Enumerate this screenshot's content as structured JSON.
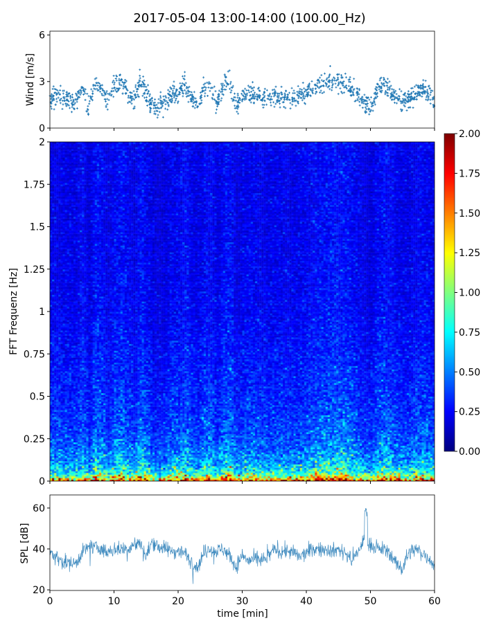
{
  "title": "2017-05-04 13:00-14:00 (100.00_Hz)",
  "chart_data": [
    {
      "type": "scatter",
      "ylabel": "Wind [m/s]",
      "xlim": [
        0,
        60
      ],
      "ylim": [
        0,
        6.25
      ],
      "yticks": [
        "0",
        "3",
        "6"
      ],
      "marker": "+",
      "color": "#1f77b4",
      "x": [
        0,
        1,
        2,
        3,
        4,
        5,
        6,
        7,
        8,
        9,
        10,
        11,
        12,
        13,
        14,
        15,
        16,
        17,
        18,
        19,
        20,
        21,
        22,
        23,
        24,
        25,
        26,
        27,
        28,
        29,
        30,
        31,
        32,
        33,
        34,
        35,
        36,
        37,
        38,
        39,
        40,
        41,
        42,
        43,
        44,
        45,
        46,
        47,
        48,
        49,
        50,
        51,
        52,
        53,
        54,
        55,
        56,
        57,
        58,
        59,
        60
      ],
      "y": [
        1.9,
        2.0,
        1.9,
        1.8,
        1.7,
        2.6,
        1.3,
        3.0,
        2.5,
        1.6,
        2.6,
        3.0,
        2.3,
        1.6,
        3.0,
        2.3,
        1.5,
        1.3,
        1.6,
        2.3,
        2.2,
        2.8,
        2.0,
        1.6,
        2.5,
        2.6,
        1.5,
        2.7,
        3.0,
        1.5,
        2.0,
        2.3,
        2.1,
        2.0,
        1.9,
        2.0,
        2.0,
        2.0,
        1.9,
        2.1,
        2.2,
        2.6,
        2.8,
        2.9,
        3.2,
        3.0,
        3.0,
        2.6,
        2.2,
        1.6,
        1.4,
        2.5,
        2.9,
        2.5,
        2.0,
        1.8,
        1.8,
        2.3,
        2.5,
        2.2,
        1.7
      ]
    },
    {
      "type": "heatmap",
      "ylabel": "FFT Frequenz [Hz]",
      "xlim": [
        0,
        60
      ],
      "ylim": [
        0,
        2
      ],
      "yticks": [
        "0",
        "0.25",
        "0.5",
        "0.75",
        "1",
        "1.25",
        "1.5",
        "1.75",
        "2"
      ],
      "colormap": "jet",
      "frequency_hz": [
        0,
        0.02,
        0.05,
        0.1,
        0.2,
        0.3,
        0.5,
        0.75,
        1.0,
        1.5,
        2.0
      ],
      "mean_level": [
        1.7,
        1.2,
        0.8,
        0.6,
        0.45,
        0.38,
        0.32,
        0.28,
        0.24,
        0.22,
        0.22
      ],
      "colorbar": {
        "range": [
          0,
          2
        ],
        "ticks": [
          "0.00",
          "0.25",
          "0.50",
          "0.75",
          "1.00",
          "1.25",
          "1.50",
          "1.75",
          "2.00"
        ]
      }
    },
    {
      "type": "line",
      "ylabel": "SPL [dB]",
      "xlabel": "time [min]",
      "xlim": [
        0,
        60
      ],
      "ylim": [
        19.7,
        66.4
      ],
      "yticks": [
        "20",
        "40",
        "60"
      ],
      "xticks": [
        "0",
        "10",
        "20",
        "30",
        "40",
        "50",
        "60"
      ],
      "color": "#1f77b4",
      "x": [
        0,
        1,
        2,
        3,
        4,
        5,
        6,
        7,
        8,
        9,
        10,
        11,
        12,
        13,
        14,
        15,
        16,
        17,
        18,
        19,
        20,
        21,
        22,
        23,
        24,
        25,
        26,
        27,
        28,
        29,
        30,
        31,
        32,
        33,
        34,
        35,
        36,
        37,
        38,
        39,
        40,
        41,
        42,
        43,
        44,
        45,
        46,
        47,
        48,
        49,
        50,
        51,
        52,
        53,
        54,
        55,
        56,
        57,
        58,
        59,
        60
      ],
      "y": [
        39,
        36,
        34,
        33,
        33,
        38,
        41,
        41,
        40,
        38,
        40,
        40,
        40,
        42,
        43,
        36,
        44,
        41,
        40,
        39,
        39,
        38,
        34,
        31,
        38,
        40,
        39,
        40,
        37,
        31,
        37,
        34,
        35,
        34,
        36,
        40,
        39,
        39,
        38,
        36,
        38,
        40,
        40,
        40,
        39,
        40,
        38,
        35,
        38,
        44,
        42,
        40,
        40,
        38,
        33,
        30,
        38,
        40,
        38,
        36,
        32
      ]
    }
  ]
}
